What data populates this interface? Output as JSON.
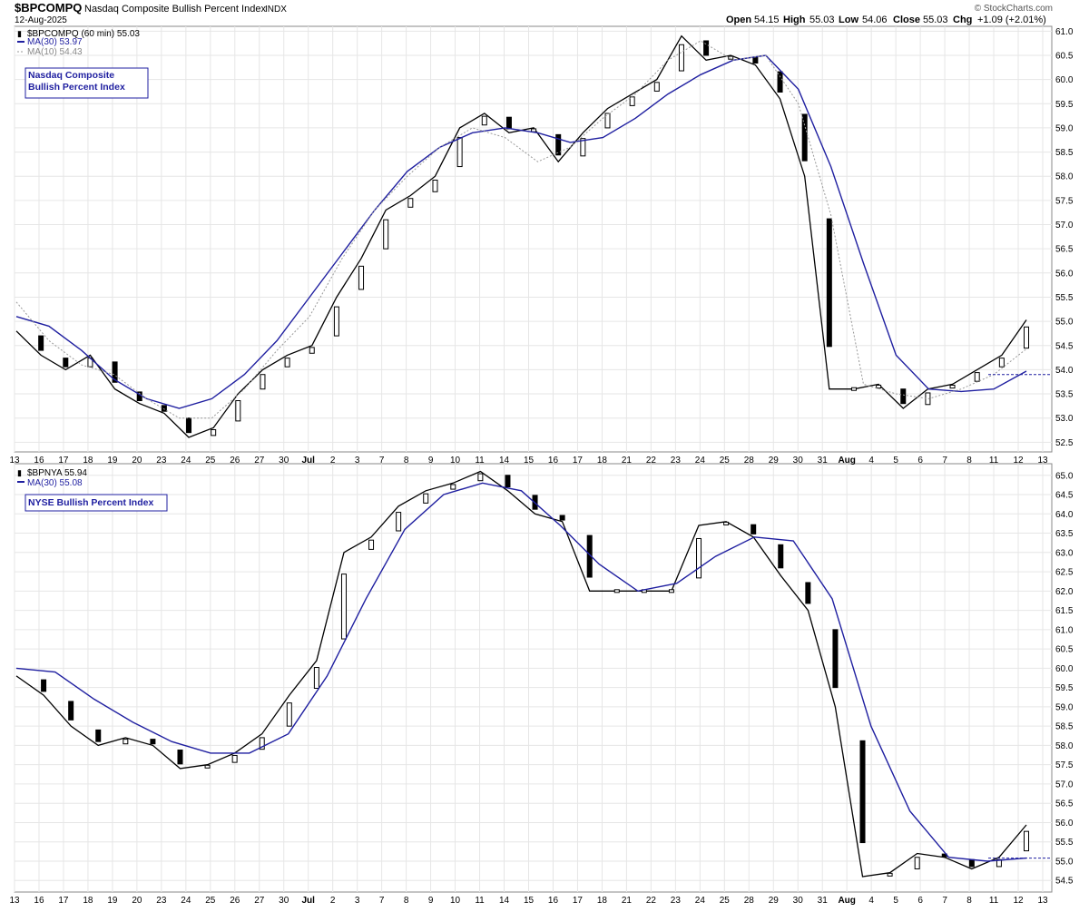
{
  "header": {
    "symbol": "$BPCOMPQ",
    "name": "Nasdaq Composite Bullish Percent Index",
    "exchange": "INDX",
    "date": "12-Aug-2025",
    "open_label": "Open",
    "open": "54.15",
    "high_label": "High",
    "high": "55.03",
    "low_label": "Low",
    "low": "54.06",
    "close_label": "Close",
    "close": "55.03",
    "chg_label": "Chg",
    "chg": "+1.09 (+2.01%)",
    "brand": "© StockCharts.com"
  },
  "colors": {
    "ma30": "#1f1fa0",
    "ma10": "#999999",
    "candle_up": "#ffffff",
    "candle_down": "#000000",
    "grid": "#e6e6e6",
    "last_line": "#1f1fa0"
  },
  "time_axis": [
    "13",
    "16",
    "17",
    "18",
    "19",
    "20",
    "23",
    "24",
    "25",
    "26",
    "27",
    "30",
    "Jul",
    "2",
    "3",
    "7",
    "8",
    "9",
    "10",
    "11",
    "14",
    "15",
    "16",
    "17",
    "18",
    "21",
    "22",
    "23",
    "24",
    "25",
    "28",
    "29",
    "30",
    "31",
    "Aug",
    "4",
    "5",
    "6",
    "7",
    "8",
    "11",
    "12",
    "13"
  ],
  "chart_data": [
    {
      "type": "line",
      "panel": "top",
      "legend": [
        {
          "label": "$BPCOMPQ (60 min) 55.03",
          "icon": "candlestick-icon"
        },
        {
          "label": "MA(30) 53.97",
          "color": "#1f1fa0"
        },
        {
          "label": "MA(10) 54.43",
          "color": "#999999"
        }
      ],
      "annotation": "Nasdaq Composite Bullish Percent Index",
      "ylim": [
        52.3,
        61.1
      ],
      "yticks": [
        "52.5",
        "53.0",
        "53.5",
        "54.0",
        "54.5",
        "55.0",
        "55.5",
        "56.0",
        "56.5",
        "57.0",
        "57.5",
        "58.0",
        "58.5",
        "59.0",
        "59.5",
        "60.0",
        "60.5",
        "61.0"
      ],
      "last_value": 53.9,
      "series": [
        {
          "role": "price",
          "values": [
            [
              0,
              54.8
            ],
            [
              1,
              54.3
            ],
            [
              2,
              54.0
            ],
            [
              3,
              54.3
            ],
            [
              4,
              53.6
            ],
            [
              5,
              53.3
            ],
            [
              6,
              53.1
            ],
            [
              7,
              52.6
            ],
            [
              8,
              52.8
            ],
            [
              9,
              53.5
            ],
            [
              10,
              54.0
            ],
            [
              11,
              54.3
            ],
            [
              12,
              54.5
            ],
            [
              13,
              55.5
            ],
            [
              14,
              56.3
            ],
            [
              15,
              57.3
            ],
            [
              16,
              57.6
            ],
            [
              17,
              58.0
            ],
            [
              18,
              59.0
            ],
            [
              19,
              59.3
            ],
            [
              20,
              58.9
            ],
            [
              21,
              59.0
            ],
            [
              22,
              58.3
            ],
            [
              23,
              58.9
            ],
            [
              24,
              59.4
            ],
            [
              25,
              59.7
            ],
            [
              26,
              60.0
            ],
            [
              27,
              60.9
            ],
            [
              28,
              60.4
            ],
            [
              29,
              60.5
            ],
            [
              30,
              60.3
            ],
            [
              31,
              59.6
            ],
            [
              32,
              58.0
            ],
            [
              33,
              53.6
            ],
            [
              34,
              53.6
            ],
            [
              35,
              53.7
            ],
            [
              36,
              53.2
            ],
            [
              37,
              53.6
            ],
            [
              38,
              53.7
            ],
            [
              39,
              54.0
            ],
            [
              40,
              54.3
            ],
            [
              41,
              55.03
            ]
          ]
        },
        {
          "role": "ma30",
          "values": [
            [
              0,
              55.1
            ],
            [
              1,
              54.9
            ],
            [
              2,
              54.4
            ],
            [
              3,
              53.8
            ],
            [
              4,
              53.4
            ],
            [
              5,
              53.2
            ],
            [
              6,
              53.4
            ],
            [
              7,
              53.9
            ],
            [
              8,
              54.6
            ],
            [
              9,
              55.5
            ],
            [
              10,
              56.4
            ],
            [
              11,
              57.3
            ],
            [
              12,
              58.1
            ],
            [
              13,
              58.6
            ],
            [
              14,
              58.9
            ],
            [
              15,
              59.0
            ],
            [
              16,
              58.9
            ],
            [
              17,
              58.7
            ],
            [
              18,
              58.8
            ],
            [
              19,
              59.2
            ],
            [
              20,
              59.7
            ],
            [
              21,
              60.1
            ],
            [
              22,
              60.4
            ],
            [
              23,
              60.5
            ],
            [
              24,
              59.8
            ],
            [
              25,
              58.2
            ],
            [
              26,
              56.2
            ],
            [
              27,
              54.3
            ],
            [
              28,
              53.6
            ],
            [
              29,
              53.55
            ],
            [
              30,
              53.6
            ],
            [
              31,
              53.97
            ]
          ]
        },
        {
          "role": "ma10",
          "values": [
            [
              0,
              55.4
            ],
            [
              1,
              54.6
            ],
            [
              2,
              54.1
            ],
            [
              3,
              53.9
            ],
            [
              4,
              53.4
            ],
            [
              5,
              53.0
            ],
            [
              6,
              53.0
            ],
            [
              7,
              53.6
            ],
            [
              8,
              54.4
            ],
            [
              9,
              55.1
            ],
            [
              10,
              56.3
            ],
            [
              11,
              57.3
            ],
            [
              12,
              58.0
            ],
            [
              13,
              58.6
            ],
            [
              14,
              59.0
            ],
            [
              15,
              58.8
            ],
            [
              16,
              58.3
            ],
            [
              17,
              58.6
            ],
            [
              18,
              59.2
            ],
            [
              19,
              59.7
            ],
            [
              20,
              60.4
            ],
            [
              21,
              60.8
            ],
            [
              22,
              60.4
            ],
            [
              23,
              60.5
            ],
            [
              24,
              59.5
            ],
            [
              25,
              57.2
            ],
            [
              26,
              53.7
            ],
            [
              27,
              53.5
            ],
            [
              28,
              53.4
            ],
            [
              29,
              53.6
            ],
            [
              30,
              53.9
            ],
            [
              31,
              54.43
            ]
          ]
        }
      ]
    },
    {
      "type": "line",
      "panel": "bottom",
      "legend": [
        {
          "label": "$BPNYA 55.94",
          "icon": "candlestick-icon"
        },
        {
          "label": "MA(30) 55.08",
          "color": "#1f1fa0"
        }
      ],
      "annotation": "NYSE Bullish Percent Index",
      "ylim": [
        54.2,
        65.3
      ],
      "yticks": [
        "54.5",
        "55.0",
        "55.5",
        "56.0",
        "56.5",
        "57.0",
        "57.5",
        "58.0",
        "58.5",
        "59.0",
        "59.5",
        "60.0",
        "60.5",
        "61.0",
        "61.5",
        "62.0",
        "62.5",
        "63.0",
        "63.5",
        "64.0",
        "64.5",
        "65.0"
      ],
      "last_value": 55.08,
      "series": [
        {
          "role": "price",
          "values": [
            [
              0,
              59.8
            ],
            [
              1,
              59.3
            ],
            [
              2,
              58.5
            ],
            [
              3,
              58.0
            ],
            [
              4,
              58.2
            ],
            [
              5,
              58.0
            ],
            [
              6,
              57.4
            ],
            [
              7,
              57.5
            ],
            [
              8,
              57.8
            ],
            [
              9,
              58.3
            ],
            [
              10,
              59.3
            ],
            [
              11,
              60.2
            ],
            [
              12,
              63.0
            ],
            [
              13,
              63.4
            ],
            [
              14,
              64.2
            ],
            [
              15,
              64.6
            ],
            [
              16,
              64.8
            ],
            [
              17,
              65.1
            ],
            [
              18,
              64.6
            ],
            [
              19,
              64.0
            ],
            [
              20,
              63.8
            ],
            [
              21,
              62.0
            ],
            [
              22,
              62.0
            ],
            [
              23,
              62.0
            ],
            [
              24,
              62.0
            ],
            [
              25,
              63.7
            ],
            [
              26,
              63.8
            ],
            [
              27,
              63.4
            ],
            [
              28,
              62.4
            ],
            [
              29,
              61.5
            ],
            [
              30,
              59.0
            ],
            [
              31,
              54.6
            ],
            [
              32,
              54.7
            ],
            [
              33,
              55.2
            ],
            [
              34,
              55.1
            ],
            [
              35,
              54.8
            ],
            [
              36,
              55.1
            ],
            [
              37,
              55.94
            ]
          ]
        },
        {
          "role": "ma30",
          "values": [
            [
              0,
              60.0
            ],
            [
              1,
              59.9
            ],
            [
              2,
              59.2
            ],
            [
              3,
              58.6
            ],
            [
              4,
              58.1
            ],
            [
              5,
              57.8
            ],
            [
              6,
              57.8
            ],
            [
              7,
              58.3
            ],
            [
              8,
              59.8
            ],
            [
              9,
              61.8
            ],
            [
              10,
              63.6
            ],
            [
              11,
              64.5
            ],
            [
              12,
              64.8
            ],
            [
              13,
              64.6
            ],
            [
              14,
              63.7
            ],
            [
              15,
              62.7
            ],
            [
              16,
              62.0
            ],
            [
              17,
              62.2
            ],
            [
              18,
              62.9
            ],
            [
              19,
              63.4
            ],
            [
              20,
              63.3
            ],
            [
              21,
              61.8
            ],
            [
              22,
              58.5
            ],
            [
              23,
              56.3
            ],
            [
              24,
              55.1
            ],
            [
              25,
              55.0
            ],
            [
              26,
              55.08
            ]
          ]
        }
      ]
    }
  ]
}
